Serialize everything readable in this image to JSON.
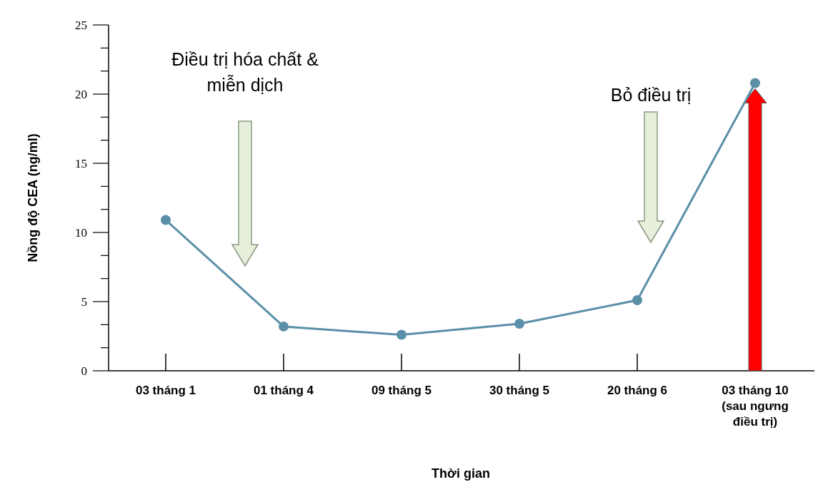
{
  "chart_data": {
    "type": "line",
    "xlabel": "Thời gian",
    "ylabel": "Nồng độ CEA (ng/ml)",
    "categories": [
      "03 tháng 1",
      "01 tháng 4",
      "09 tháng 5",
      "30 tháng 5",
      "20 tháng 6",
      "03 tháng 10\n(sau ngưng\nđiều trị)"
    ],
    "series": [
      {
        "color": "#5b8fa8",
        "values": [
          10.9,
          3.2,
          2.6,
          3.4,
          5.1,
          20.8
        ]
      }
    ],
    "ylim": [
      0,
      25
    ],
    "yticks": [
      0,
      {
        "value": 1.667,
        "label": null
      },
      {
        "value": 3.333,
        "label": null
      },
      5,
      {
        "value": 6.667,
        "label": null
      },
      {
        "value": 8.333,
        "label": null
      },
      10,
      {
        "value": 11.667,
        "label": null
      },
      {
        "value": 13.333,
        "label": null
      },
      15,
      {
        "value": 16.667,
        "label": null
      },
      {
        "value": 18.333,
        "label": null
      },
      20,
      {
        "value": 21.667,
        "label": null
      },
      {
        "value": 23.333,
        "label": null
      },
      25
    ],
    "marker": "circle",
    "line_style": "solid",
    "grid": false,
    "annotations": [
      "Điều trị hóa chất &\nmiễn dịch",
      "Bỏ điều trị"
    ]
  }
}
